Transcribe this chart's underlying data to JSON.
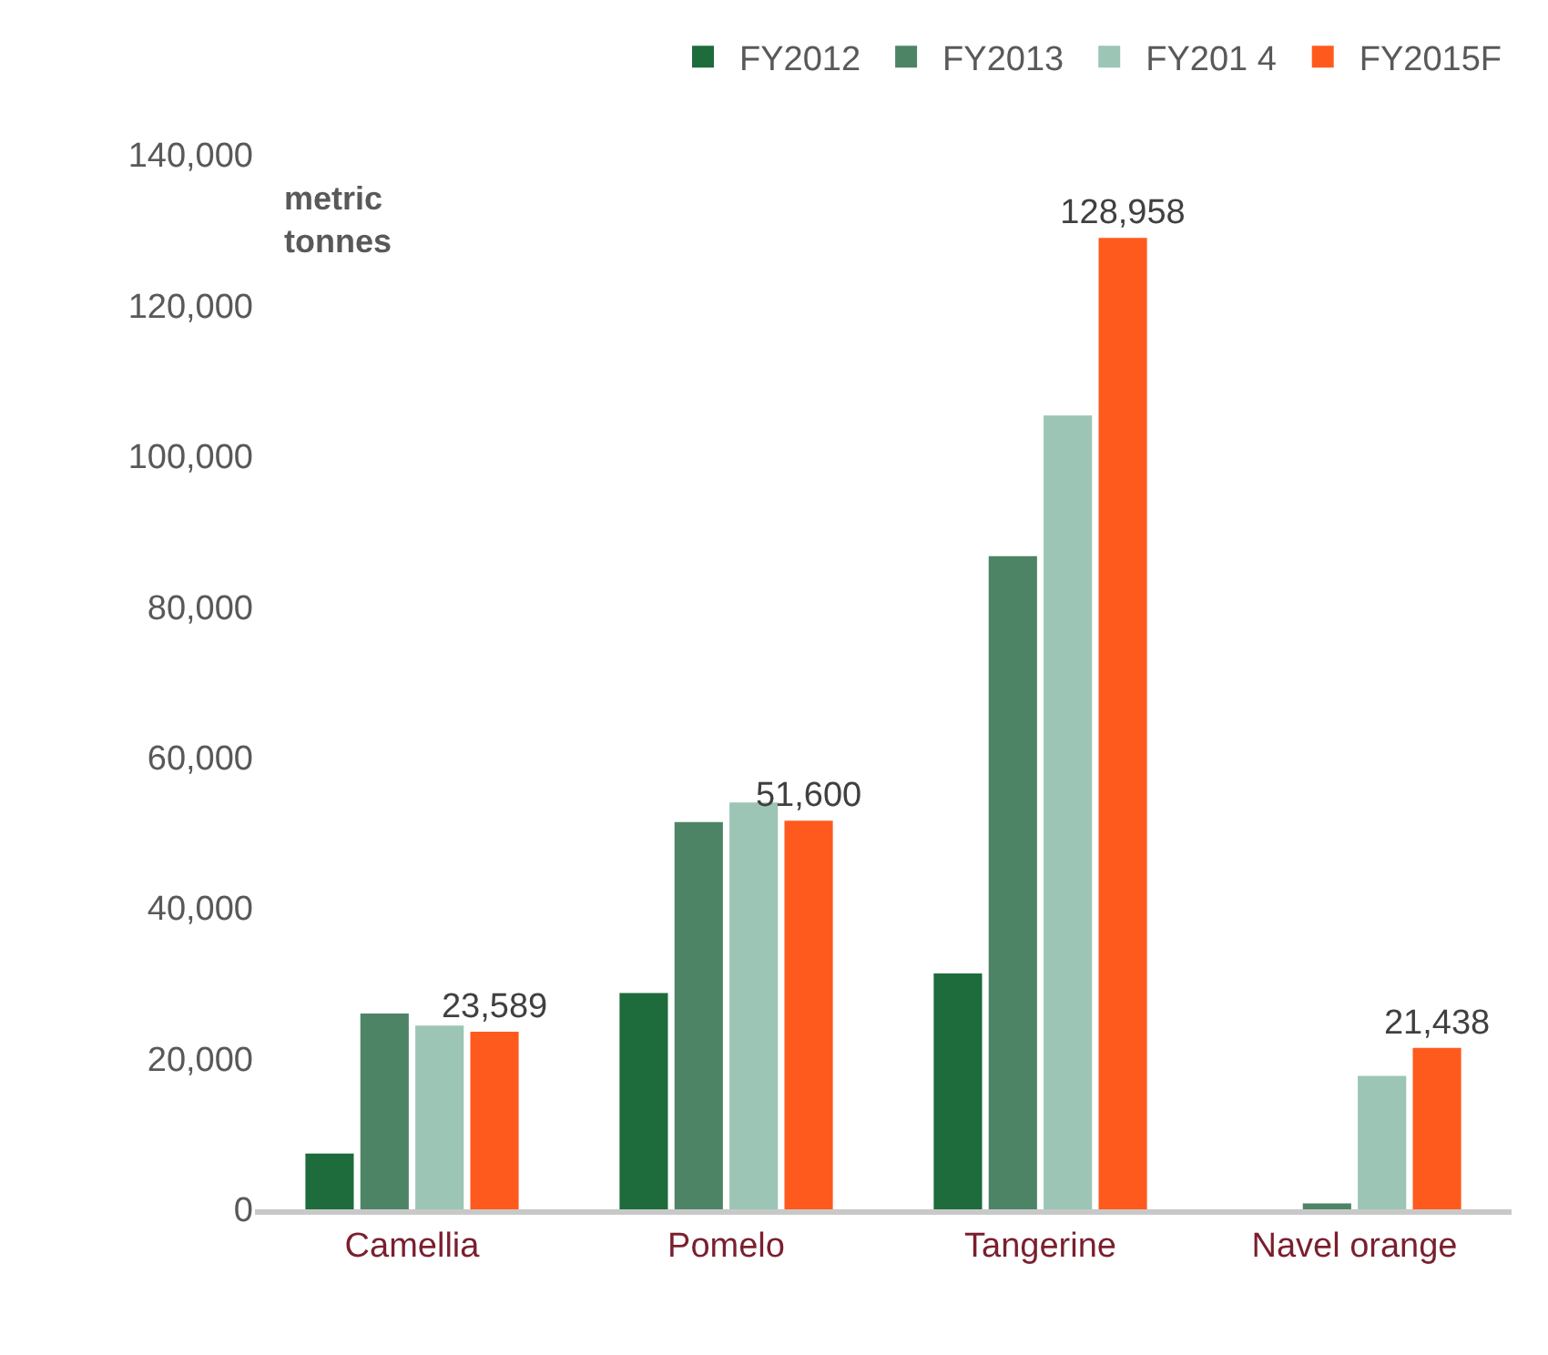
{
  "chart_data": {
    "type": "bar",
    "ylabel": "metric tonnes",
    "categories": [
      "Camellia",
      "Pomelo",
      "Tangerine",
      "Navel orange"
    ],
    "series": [
      {
        "name": "FY2012",
        "color": "#1e6b3c",
        "values": [
          7400,
          28700,
          31300,
          null
        ]
      },
      {
        "name": "FY2013",
        "color": "#4e8466",
        "values": [
          26000,
          51400,
          86700,
          800
        ]
      },
      {
        "name": "FY201 4",
        "color": "#9cc5b5",
        "values": [
          24400,
          54000,
          105400,
          17700
        ]
      },
      {
        "name": "FY2015F",
        "color": "#ff5a1e",
        "values": [
          23589,
          51600,
          128958,
          21438
        ],
        "value_labels": [
          "23,589",
          "51,600",
          "128,958",
          "21,438"
        ]
      }
    ],
    "ylim": [
      0,
      140000
    ],
    "yticks": [
      {
        "value": 0,
        "label": "0"
      },
      {
        "value": 20000,
        "label": "20,000"
      },
      {
        "value": 40000,
        "label": "40,000"
      },
      {
        "value": 60000,
        "label": "60,000"
      },
      {
        "value": 80000,
        "label": "80,000"
      },
      {
        "value": 100000,
        "label": "100,000"
      },
      {
        "value": 120000,
        "label": "120,000"
      },
      {
        "value": 140000,
        "label": "140,000"
      }
    ],
    "grid": false,
    "legend": "top"
  }
}
